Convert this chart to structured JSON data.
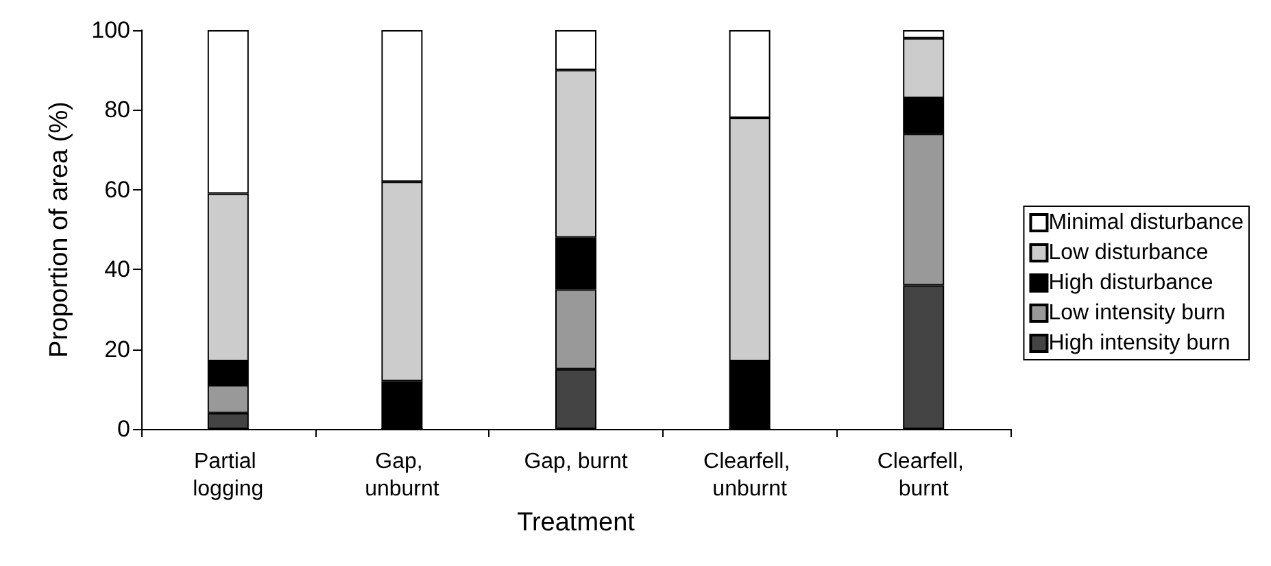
{
  "chart_data": {
    "type": "bar",
    "stacked": true,
    "xlabel": "Treatment",
    "ylabel": "Proportion of area (%)",
    "categories": [
      "Partial logging",
      "Gap, unburnt",
      "Gap, burnt",
      "Clearfell, unburnt",
      "Clearfell, burnt"
    ],
    "series": [
      {
        "name": "High intensity burn",
        "color": "#444444",
        "values": [
          4,
          0,
          15,
          0,
          36
        ]
      },
      {
        "name": "Low intensity burn",
        "color": "#999999",
        "values": [
          7,
          0,
          20,
          0,
          38
        ]
      },
      {
        "name": "High disturbance",
        "color": "#000000",
        "values": [
          6,
          12,
          13,
          17,
          9
        ]
      },
      {
        "name": "Low disturbance",
        "color": "#cccccc",
        "values": [
          42,
          50,
          42,
          61,
          15
        ]
      },
      {
        "name": "Minimal disturbance",
        "color": "#ffffff",
        "values": [
          41,
          38,
          10,
          22,
          2
        ]
      }
    ],
    "ylim": [
      0,
      100
    ],
    "yticks": [
      0,
      20,
      40,
      60,
      80,
      100
    ],
    "grid": false,
    "legend": "right"
  }
}
